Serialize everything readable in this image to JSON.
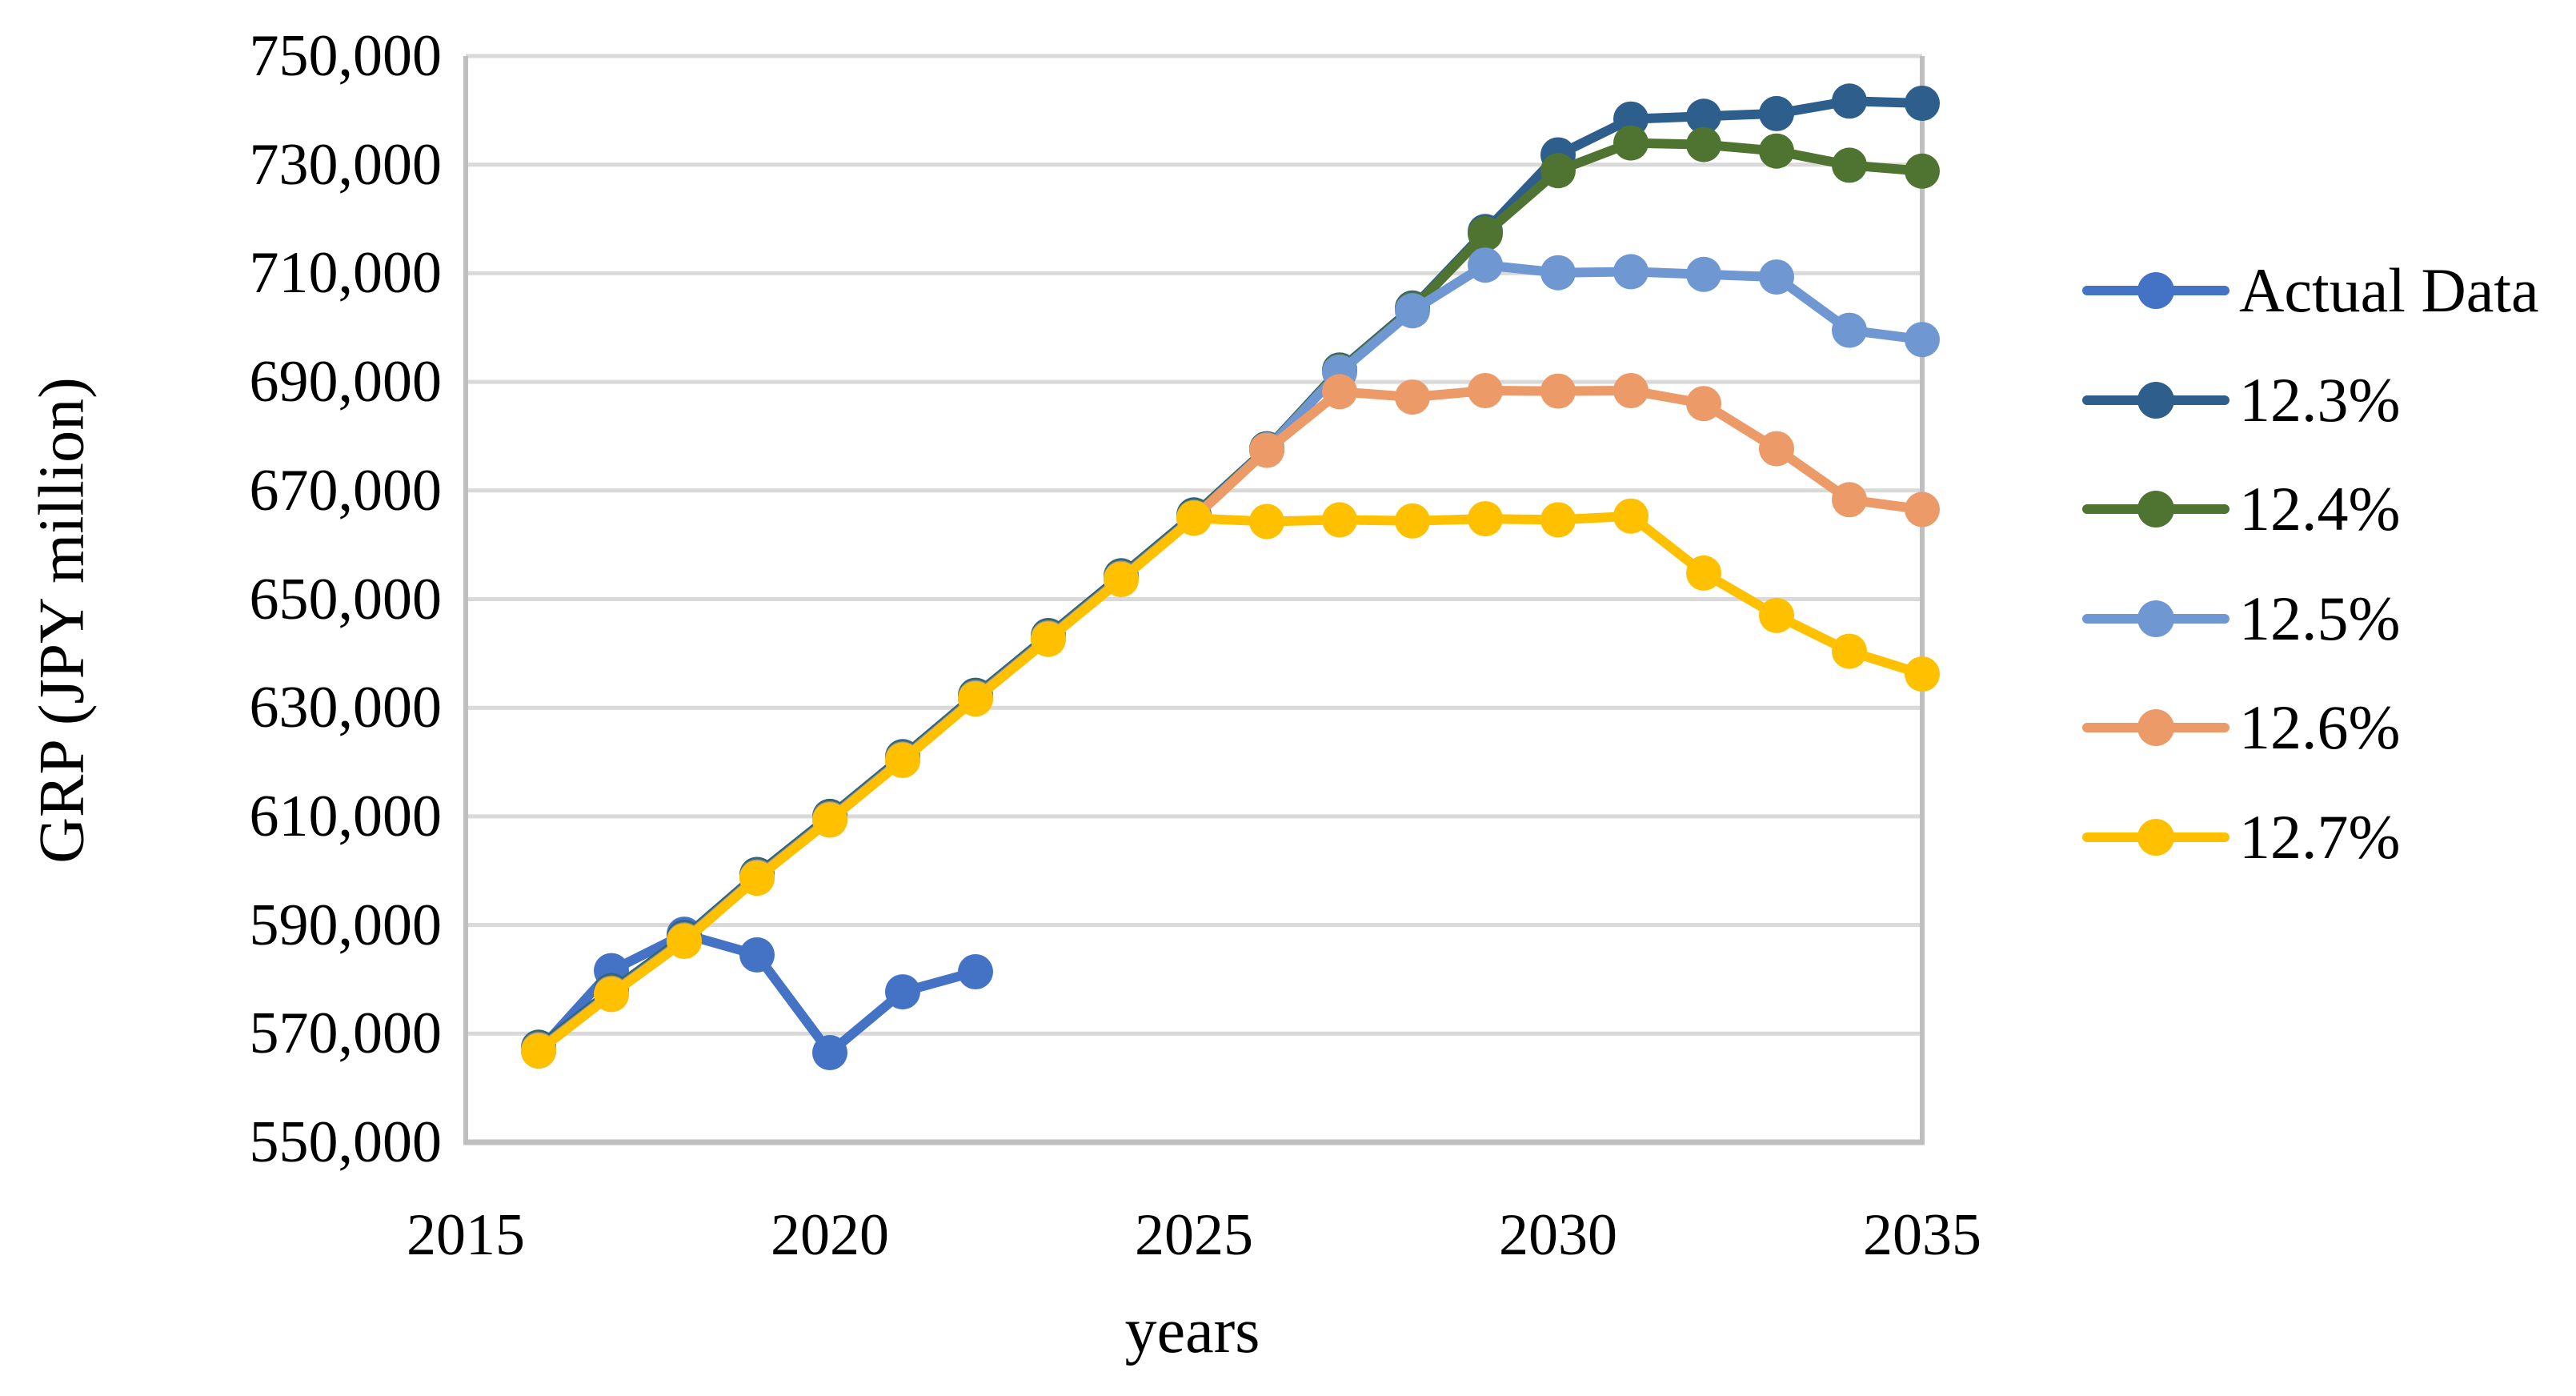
{
  "page": {
    "background": "#FFFFFF"
  },
  "chart_data": {
    "type": "line",
    "title": "",
    "xlabel": "years",
    "ylabel": "GRP (JPY million)",
    "xlim": [
      2015,
      2035
    ],
    "ylim": [
      550000,
      750000
    ],
    "ytick_step": 20000,
    "grid": "horizontal-only",
    "legend_position": "right-middle",
    "colors": {
      "gridline": "#D9D9D9",
      "axis_border": "#BFBFBF",
      "tick_text": "#000000",
      "background": "#FFFFFF"
    },
    "xticks": [
      {
        "value": 2015,
        "label": "2015"
      },
      {
        "value": 2020,
        "label": "2020"
      },
      {
        "value": 2025,
        "label": "2025"
      },
      {
        "value": 2030,
        "label": "2030"
      },
      {
        "value": 2035,
        "label": "2035"
      }
    ],
    "yticks": [
      {
        "value": 750000,
        "label": "750,000"
      },
      {
        "value": 730000,
        "label": "730,000"
      },
      {
        "value": 710000,
        "label": "710,000"
      },
      {
        "value": 690000,
        "label": "690,000"
      },
      {
        "value": 670000,
        "label": "670,000"
      },
      {
        "value": 650000,
        "label": "650,000"
      },
      {
        "value": 630000,
        "label": "630,000"
      },
      {
        "value": 610000,
        "label": "610,000"
      },
      {
        "value": 590000,
        "label": "590,000"
      },
      {
        "value": 570000,
        "label": "570,000"
      },
      {
        "value": 550000,
        "label": "550,000"
      }
    ],
    "series": [
      {
        "name": "Actual Data",
        "color": "#4472C4",
        "x": [
          2016,
          2017,
          2018,
          2019,
          2020,
          2021,
          2022
        ],
        "values": [
          566800,
          581600,
          588300,
          584500,
          566500,
          577700,
          581400
        ]
      },
      {
        "name": "12.3%",
        "color": "#2E5E8C",
        "x": [
          2016,
          2017,
          2018,
          2019,
          2020,
          2021,
          2022,
          2023,
          2024,
          2025,
          2026,
          2027,
          2028,
          2029,
          2030,
          2031,
          2032,
          2033,
          2034,
          2035
        ],
        "values": [
          567500,
          577900,
          587700,
          599300,
          610000,
          621000,
          632300,
          643300,
          654300,
          665500,
          677700,
          692200,
          703600,
          717700,
          731800,
          738400,
          738900,
          739400,
          741700,
          741300
        ]
      },
      {
        "name": "12.4%",
        "color": "#4F7330",
        "x": [
          2016,
          2017,
          2018,
          2019,
          2020,
          2021,
          2022,
          2023,
          2024,
          2025,
          2026,
          2027,
          2028,
          2029,
          2030,
          2031,
          2032,
          2033,
          2034,
          2035
        ],
        "values": [
          567250,
          577650,
          587450,
          599050,
          609750,
          620750,
          632050,
          643050,
          654050,
          665250,
          677600,
          692000,
          703400,
          717300,
          728900,
          734000,
          733700,
          732500,
          729900,
          728800
        ]
      },
      {
        "name": "12.5%",
        "color": "#6F98D3",
        "x": [
          2016,
          2017,
          2018,
          2019,
          2020,
          2021,
          2022,
          2023,
          2024,
          2025,
          2026,
          2027,
          2028,
          2029,
          2030,
          2031,
          2032,
          2033,
          2034,
          2035
        ],
        "values": [
          567050,
          577450,
          587250,
          598850,
          609550,
          620550,
          631850,
          642850,
          653850,
          665050,
          677500,
          691800,
          703100,
          711500,
          710100,
          710300,
          709800,
          709300,
          699500,
          697800
        ]
      },
      {
        "name": "12.6%",
        "color": "#EC9A68",
        "x": [
          2016,
          2017,
          2018,
          2019,
          2020,
          2021,
          2022,
          2023,
          2024,
          2025,
          2026,
          2027,
          2028,
          2029,
          2030,
          2031,
          2032,
          2033,
          2034,
          2035
        ],
        "values": [
          566900,
          577300,
          587100,
          598700,
          609400,
          620400,
          631700,
          642700,
          653700,
          664950,
          677400,
          688200,
          687200,
          688400,
          688300,
          688400,
          686000,
          677700,
          668300,
          666500
        ]
      },
      {
        "name": "12.7%",
        "color": "#FFC000",
        "x": [
          2016,
          2017,
          2018,
          2019,
          2020,
          2021,
          2022,
          2023,
          2024,
          2025,
          2026,
          2027,
          2028,
          2029,
          2030,
          2031,
          2032,
          2033,
          2034,
          2035
        ],
        "values": [
          566800,
          577200,
          587000,
          598600,
          609300,
          620300,
          631600,
          642600,
          653600,
          664900,
          664300,
          664600,
          664400,
          664800,
          664600,
          665300,
          654800,
          647000,
          640400,
          636200
        ]
      }
    ]
  }
}
